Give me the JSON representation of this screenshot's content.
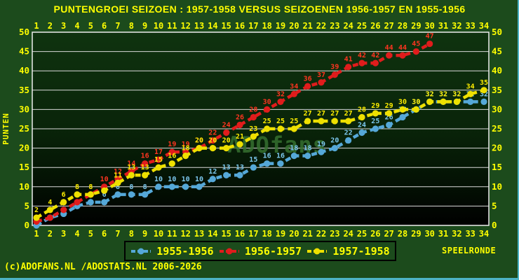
{
  "title": "PUNTENGROEI  SEIZOEN : 1957-1958 VERSUS SEIZOENEN 1956-1957 EN 1955-1956",
  "axes": {
    "xlabel": "SPEELRONDE",
    "ylabel": "PUNTEN"
  },
  "legend": {
    "entries": [
      {
        "label": "1955-1956",
        "color": "#55a8d8"
      },
      {
        "label": "1956-1957",
        "color": "#e01c1c"
      },
      {
        "label": "1957-1958",
        "color": "#eee000"
      }
    ]
  },
  "footer": {
    "text": "(c)ADOFANS.NL /ADOSTATS.NL 2006-2026"
  },
  "chart_data": {
    "type": "line",
    "title": "PUNTENGROEI  SEIZOEN : 1957-1958 VERSUS SEIZOENEN 1956-1957 EN 1955-1956",
    "xlabel": "SPEELRONDE",
    "ylabel": "PUNTEN",
    "ylim": [
      0,
      50
    ],
    "grid": "horizontal-every-5",
    "legend_position": "bottom-center",
    "watermark": "ADOfans",
    "x_ticks": [
      1,
      2,
      3,
      4,
      5,
      6,
      7,
      8,
      9,
      10,
      11,
      12,
      13,
      14,
      15,
      16,
      17,
      18,
      19,
      20,
      21,
      22,
      23,
      24,
      25,
      26,
      27,
      28,
      29,
      30,
      31,
      32,
      33,
      34
    ],
    "y_ticks": [
      0,
      5,
      10,
      15,
      20,
      25,
      30,
      35,
      40,
      45,
      50
    ],
    "series": [
      {
        "name": "1955-1956",
        "color": "#55a8d8",
        "label_color": "#7cc8ee",
        "x_start": 1,
        "values": [
          0,
          2,
          3,
          5,
          6,
          6,
          8,
          8,
          8,
          10,
          10,
          10,
          10,
          12,
          13,
          13,
          15,
          16,
          16,
          18,
          18,
          19,
          20,
          22,
          24,
          25,
          26,
          28,
          30,
          32,
          32,
          32,
          32,
          32
        ],
        "point_labels": [
          "",
          "",
          "",
          "",
          "",
          "6",
          "8",
          "8",
          "8",
          "10",
          "10",
          "10",
          "10",
          "12",
          "13",
          "13",
          "15",
          "16",
          "16",
          "18",
          "18",
          "19",
          "20",
          "22",
          "24",
          "25",
          "26",
          "28",
          "30",
          "32",
          "32",
          "32",
          "32",
          "32"
        ]
      },
      {
        "name": "1956-1957",
        "color": "#e01c1c",
        "label_color": "#ff3520",
        "x_start": 1,
        "values": [
          1,
          2,
          4,
          6,
          8,
          10,
          12,
          14,
          16,
          17,
          19,
          19,
          20,
          22,
          24,
          26,
          28,
          30,
          32,
          34,
          36,
          37,
          39,
          41,
          42,
          42,
          44,
          44,
          45,
          47
        ],
        "point_labels": [
          "",
          "",
          "",
          "",
          "",
          "10",
          "12",
          "14",
          "16",
          "17",
          "19",
          "19",
          "20",
          "22",
          "24",
          "26",
          "28",
          "30",
          "32",
          "34",
          "36",
          "37",
          "39",
          "41",
          "42",
          "42",
          "44",
          "44",
          "45",
          "47"
        ]
      },
      {
        "name": "1957-1958",
        "color": "#eee000",
        "label_color": "#ffee00",
        "x_start": 1,
        "values": [
          2,
          4,
          6,
          8,
          8,
          9,
          11,
          13,
          13,
          15,
          16,
          18,
          20,
          20,
          20,
          21,
          23,
          25,
          25,
          25,
          27,
          27,
          27,
          27,
          28,
          29,
          29,
          30,
          30,
          32,
          32,
          32,
          34,
          35
        ],
        "point_labels": [
          "2",
          "4",
          "6",
          "8",
          "8",
          "",
          "11",
          "13",
          "13",
          "15",
          "16",
          "18",
          "20",
          "20",
          "20",
          "21",
          "23",
          "25",
          "25",
          "25",
          "27",
          "27",
          "27",
          "27",
          "28",
          "29",
          "29",
          "30",
          "30",
          "32",
          "32",
          "32",
          "34",
          "35"
        ]
      }
    ]
  }
}
